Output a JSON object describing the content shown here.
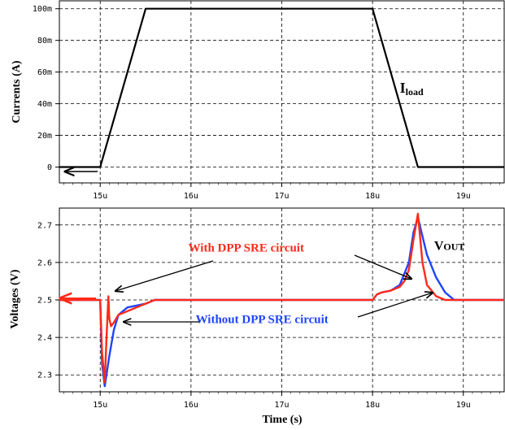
{
  "colors": {
    "current": "#000000",
    "with_sre": "#ff2a1a",
    "without_sre": "#1f44ff",
    "grid": "#000000",
    "arrow": "#000000"
  },
  "chart_data": [
    {
      "type": "line",
      "ylabel": "Currents (A)",
      "xlim": [
        14.55,
        19.45
      ],
      "ylim": [
        -0.01,
        0.105
      ],
      "xticks": [
        15,
        16,
        17,
        18,
        19
      ],
      "xtick_labels": [
        "15u",
        "16u",
        "17u",
        "18u",
        "19u"
      ],
      "yticks": [
        0,
        0.02,
        0.04,
        0.06,
        0.08,
        0.1
      ],
      "ytick_labels": [
        "0",
        "20m",
        "40m",
        "60m",
        "80m",
        "100m"
      ],
      "grid": true,
      "series": [
        {
          "color": "#000000",
          "x": [
            14.55,
            15.0,
            15.5,
            18.0,
            18.5,
            19.45
          ],
          "y": [
            0,
            0,
            0.1,
            0.1,
            0,
            0
          ]
        }
      ],
      "annotations": [
        {
          "text_main": "I",
          "text_sub": "load",
          "x": 18.3,
          "y": 0.05
        }
      ]
    },
    {
      "type": "line",
      "xlabel": "Time (s)",
      "ylabel": "Voltages (V)",
      "xlim": [
        14.55,
        19.45
      ],
      "ylim": [
        2.255,
        2.745
      ],
      "xticks": [
        15,
        16,
        17,
        18,
        19
      ],
      "xtick_labels": [
        "15u",
        "16u",
        "17u",
        "18u",
        "19u"
      ],
      "yticks": [
        2.3,
        2.4,
        2.5,
        2.6,
        2.7
      ],
      "ytick_labels": [
        "2.3",
        "2.4",
        "2.5",
        "2.6",
        "2.7"
      ],
      "grid": true,
      "series": [
        {
          "color": "#1f44ff",
          "x": [
            14.55,
            15.0,
            15.02,
            15.05,
            15.1,
            15.15,
            15.2,
            15.3,
            15.4,
            15.5,
            15.6,
            15.7,
            18.0,
            18.05,
            18.1,
            18.2,
            18.3,
            18.4,
            18.45,
            18.5,
            18.6,
            18.7,
            18.8,
            18.9,
            19.45
          ],
          "y": [
            2.5,
            2.5,
            2.33,
            2.27,
            2.35,
            2.42,
            2.46,
            2.48,
            2.485,
            2.49,
            2.5,
            2.5,
            2.5,
            2.515,
            2.52,
            2.525,
            2.54,
            2.6,
            2.68,
            2.72,
            2.62,
            2.56,
            2.52,
            2.5,
            2.5
          ]
        },
        {
          "color": "#ff2a1a",
          "x": [
            14.55,
            15.0,
            15.02,
            15.05,
            15.07,
            15.09,
            15.1,
            15.12,
            15.15,
            15.2,
            15.3,
            15.4,
            15.5,
            15.6,
            15.7,
            18.0,
            18.05,
            18.1,
            18.2,
            18.3,
            18.35,
            18.4,
            18.45,
            18.5,
            18.55,
            18.6,
            18.7,
            18.8,
            18.9,
            19.45
          ],
          "y": [
            2.5,
            2.5,
            2.36,
            2.28,
            2.4,
            2.51,
            2.45,
            2.43,
            2.44,
            2.46,
            2.47,
            2.48,
            2.49,
            2.5,
            2.5,
            2.5,
            2.515,
            2.52,
            2.525,
            2.535,
            2.55,
            2.58,
            2.66,
            2.73,
            2.6,
            2.54,
            2.51,
            2.5,
            2.5,
            2.5
          ]
        }
      ],
      "annotations": [
        {
          "text": "With DPP SRE circuit",
          "x": 16.25,
          "y": 2.62
        },
        {
          "text": "Without DPP SRE circuit",
          "x": 16.2,
          "y": 2.43
        },
        {
          "text_main": "V",
          "text_sub": "OUT",
          "x": 18.75,
          "y": 2.64
        }
      ]
    }
  ]
}
